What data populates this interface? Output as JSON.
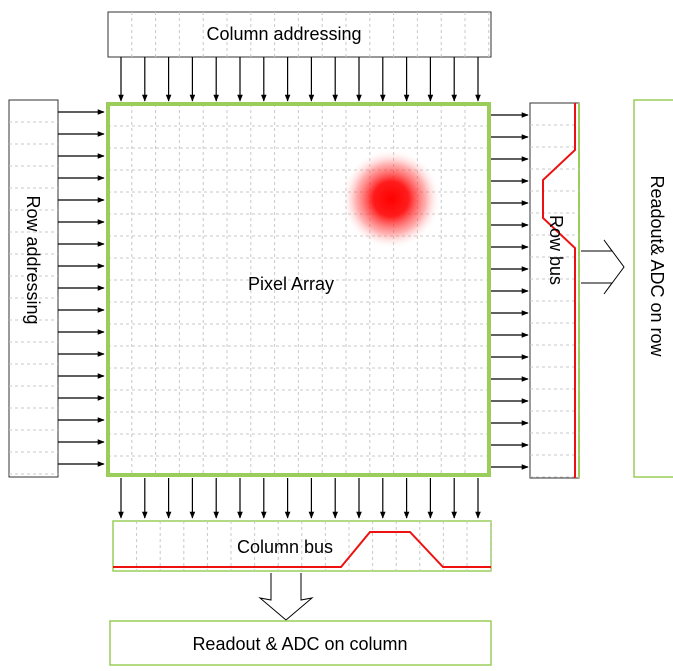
{
  "labels": {
    "column_addressing": "Column addressing",
    "row_addressing": "Row addressing",
    "pixel_array": "Pixel Array",
    "row_bus": "Row bus",
    "readout_row": "Readout& ADC on row",
    "column_bus": "Column bus",
    "readout_column": "Readout & ADC on column"
  },
  "colors": {
    "array_border": "#9acd5a",
    "grid_line": "#c8c8c8",
    "signal": "#ee1111",
    "spot": "#ff0000",
    "arrow": "#000000"
  }
}
